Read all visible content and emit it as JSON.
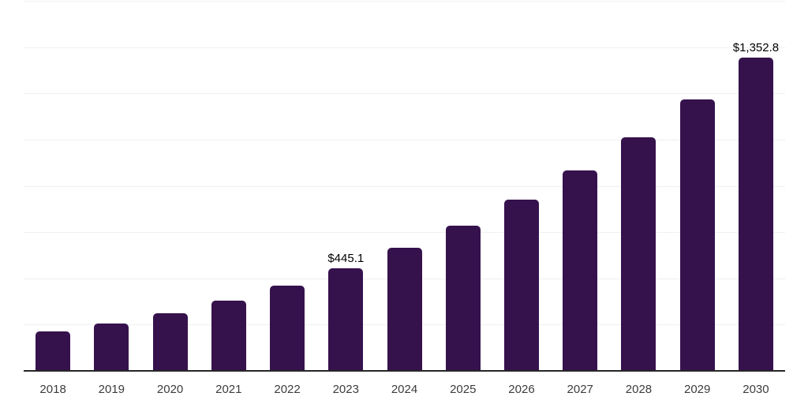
{
  "chart_data": {
    "type": "bar",
    "title": "",
    "xlabel": "",
    "ylabel": "",
    "categories": [
      "2018",
      "2019",
      "2020",
      "2021",
      "2022",
      "2023",
      "2024",
      "2025",
      "2026",
      "2027",
      "2028",
      "2029",
      "2030"
    ],
    "values": [
      171,
      205,
      250,
      304,
      368,
      445.1,
      532,
      629,
      740,
      868,
      1011,
      1172,
      1352.8
    ],
    "bar_labels": [
      "",
      "",
      "",
      "",
      "",
      "$445.1",
      "",
      "",
      "",
      "",
      "",
      "",
      "$1,352.8"
    ],
    "ylim": [
      0,
      1600
    ],
    "gridline_step": 200,
    "grid": true,
    "legend": false,
    "y_axis_labels_visible": false,
    "colors": {
      "bar": "#36124d",
      "axis_line": "#262626",
      "gridline": "#f0f0f0",
      "x_tick_label": "#3c3c3c",
      "data_label": "#000000",
      "background": "#ffffff"
    }
  }
}
